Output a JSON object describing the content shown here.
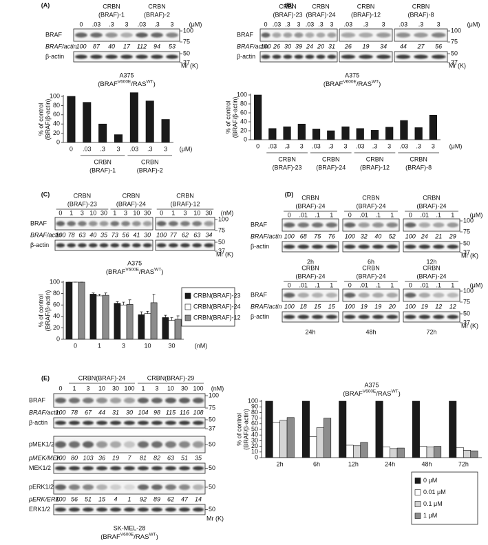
{
  "panels": {
    "A": {
      "label": "(A)",
      "unit": "(μM)",
      "control": "0",
      "groups": [
        {
          "title": [
            "CRBN",
            "(BRAF)-1"
          ],
          "lanes": [
            ".03",
            ".3",
            "3"
          ]
        },
        {
          "title": [
            "CRBN",
            "(BRAF)-2"
          ],
          "lanes": [
            ".03",
            ".3",
            "3"
          ]
        }
      ],
      "rows": [
        {
          "name": "BRAF",
          "markers": [
            100,
            75
          ],
          "ratio_name": "BRAF/actin",
          "ratios": [
            100,
            87,
            40,
            17,
            112,
            94,
            53
          ]
        },
        {
          "name": "β-actin",
          "markers": [
            50,
            37
          ]
        }
      ],
      "mr": "Mr (K)",
      "cell": "A375",
      "genotype": [
        "(BRAF",
        "V600E",
        "/RAS",
        "WT",
        ")"
      ]
    },
    "B": {
      "label": "(B)",
      "unit": "(μM)",
      "control": "0",
      "groups": [
        {
          "title": [
            "CRBN",
            "(BRAF)-23"
          ],
          "lanes": [
            ".03",
            ".3",
            "3"
          ]
        },
        {
          "title": [
            "CRBN",
            "(BRAF)-24"
          ],
          "lanes": [
            ".03",
            ".3",
            "3"
          ]
        },
        {
          "title": [
            "CRBN",
            "(BRAF)-12"
          ],
          "lanes": [
            ".03",
            ".3",
            "3"
          ]
        },
        {
          "title": [
            "CRBN",
            "(BRAF)-8"
          ],
          "lanes": [
            ".03",
            ".3",
            "3"
          ]
        }
      ],
      "rows": [
        {
          "name": "BRAF",
          "markers": [
            100,
            75
          ],
          "ratio_name": "BRAF/actin",
          "ratios": [
            100,
            26,
            30,
            39,
            24,
            20,
            31,
            26,
            19,
            34,
            44,
            27,
            56
          ]
        },
        {
          "name": "β-actin",
          "markers": [
            50,
            37
          ]
        }
      ],
      "mr": "Mr (K)",
      "cell": "A375",
      "genotype": [
        "(BRAF",
        "V600E",
        "/RAS",
        "WT",
        ")"
      ]
    },
    "C": {
      "label": "(C)",
      "unit": "(nM)",
      "groups": [
        {
          "title": [
            "CRBN",
            "(BRAF)-23"
          ],
          "lanes": [
            "0",
            "1",
            "3",
            "10",
            "30"
          ]
        },
        {
          "title": [
            "CRBN",
            "(BRAF)-24"
          ],
          "lanes": [
            "1",
            "3",
            "10",
            "30"
          ]
        },
        {
          "title": [
            "CRBN",
            "(BRAF)-12"
          ],
          "lanes": [
            "0",
            "1",
            "3",
            "10",
            "30"
          ]
        }
      ],
      "rows": [
        {
          "name": "BRAF",
          "markers": [
            100,
            75
          ],
          "ratio_name": "BRAF/actin",
          "ratios": [
            100,
            78,
            63,
            40,
            35,
            73,
            56,
            41,
            30,
            100,
            77,
            62,
            63,
            34
          ]
        },
        {
          "name": "β-actin",
          "markers": [
            50,
            37
          ]
        }
      ],
      "mr": "Mr (K)",
      "cell": "A375",
      "genotype": [
        "(BRAF",
        "V600E",
        "/RAS",
        "WT",
        ")"
      ]
    },
    "D": {
      "label": "(D)",
      "unit": "(μM)",
      "mr": "Mr (K)",
      "rows": [
        {
          "name": "BRAF",
          "markers": [
            100,
            75
          ],
          "ratio_name": "BRAF/actin"
        },
        {
          "name": "β-actin",
          "markers": [
            50,
            37
          ]
        }
      ],
      "blots": [
        {
          "title": [
            "CRBN",
            "(BRAF)-24"
          ],
          "lanes": [
            "0",
            ".01",
            ".1",
            "1"
          ],
          "ratios": [
            100,
            68,
            75,
            76
          ],
          "time": "2h"
        },
        {
          "title": [
            "CRBN",
            "(BRAF)-24"
          ],
          "lanes": [
            "0",
            ".01",
            ".1",
            "1"
          ],
          "ratios": [
            100,
            32,
            40,
            52
          ],
          "time": "6h"
        },
        {
          "title": [
            "CRBN",
            "(BRAF)-24"
          ],
          "lanes": [
            "0",
            ".01",
            ".1",
            "1"
          ],
          "ratios": [
            100,
            24,
            21,
            29
          ],
          "time": "12h"
        },
        {
          "title": [
            "CRBN",
            "(BRAF)-24"
          ],
          "lanes": [
            "0",
            ".01",
            ".1",
            "1"
          ],
          "ratios": [
            100,
            18,
            15,
            15
          ],
          "time": "24h"
        },
        {
          "title": [
            "CRBN",
            "(BRAF)-24"
          ],
          "lanes": [
            "0",
            ".01",
            ".1",
            "1"
          ],
          "ratios": [
            100,
            19,
            19,
            20
          ],
          "time": "48h"
        },
        {
          "title": [
            "CRBN",
            "(BRAF)-24"
          ],
          "lanes": [
            "0",
            ".01",
            ".1",
            "1"
          ],
          "ratios": [
            100,
            19,
            12,
            12
          ],
          "time": "72h"
        }
      ]
    },
    "E": {
      "label": "(E)",
      "unit": "(nM)",
      "control": "0",
      "groups": [
        {
          "title": [
            "CRBN(BRAF)-24"
          ],
          "lanes": [
            "1",
            "3",
            "10",
            "30",
            "100"
          ]
        },
        {
          "title": [
            "CRBN(BRAF)-29"
          ],
          "lanes": [
            "1",
            "3",
            "10",
            "30",
            "100"
          ]
        }
      ],
      "rows": [
        {
          "name": "BRAF",
          "markers": [
            100,
            75
          ],
          "ratio_name": "BRAF/actin",
          "ratios": [
            100,
            78,
            67,
            44,
            31,
            30,
            104,
            98,
            115,
            116,
            108
          ]
        },
        {
          "name": "β-actin",
          "markers": [
            50,
            37
          ]
        },
        {
          "name": "pMEK1/2",
          "markers": [
            50
          ],
          "ratio_name": "pMEK/MEK",
          "ratios": [
            100,
            80,
            103,
            36,
            19,
            7,
            81,
            82,
            63,
            51,
            35
          ]
        },
        {
          "name": "MEK1/2",
          "markers": [
            50
          ]
        },
        {
          "name": "pERK1/2",
          "markers": [
            50
          ],
          "ratio_name": "pERK/ERK",
          "ratios": [
            100,
            56,
            51,
            15,
            4,
            1,
            92,
            89,
            62,
            47,
            14
          ]
        },
        {
          "name": "ERK1/2",
          "markers": [
            50
          ]
        }
      ],
      "mr": "Mr (K)",
      "cell": "SK-MEL-28",
      "genotype": [
        "(BRAF",
        "V600E",
        "/RAS",
        "WT",
        ")"
      ]
    }
  },
  "chart_data": [
    {
      "type": "bar",
      "categories": [
        "0",
        ".03",
        ".3",
        "3",
        ".03",
        ".3",
        "3"
      ],
      "values": [
        100,
        87,
        40,
        17,
        108,
        90,
        50
      ],
      "color": "#1a1a1a",
      "ylim": [
        0,
        100
      ],
      "yticks": [
        0,
        20,
        40,
        60,
        80,
        100
      ],
      "y_label": [
        "% of control",
        "(BRAF/β-actin)"
      ],
      "x_unit": "(μM)",
      "x_groups": [
        [
          "CRBN",
          "(BRAF)-1"
        ],
        [
          "CRBN",
          "(BRAF)-2"
        ]
      ]
    },
    {
      "type": "bar",
      "categories": [
        "0",
        ".03",
        ".3",
        "3",
        ".03",
        ".3",
        "3",
        ".03",
        ".3",
        "3",
        ".03",
        ".3",
        "3"
      ],
      "values": [
        100,
        25,
        29,
        35,
        24,
        20,
        29,
        25,
        21,
        28,
        43,
        27,
        55
      ],
      "color": "#1a1a1a",
      "ylim": [
        0,
        100
      ],
      "yticks": [
        0,
        20,
        40,
        60,
        80,
        100
      ],
      "y_label": [
        "% of control",
        "(BRAF/β-actin)"
      ],
      "x_unit": "(μM)",
      "x_groups": [
        [
          "CRBN",
          "(BRAF)-23"
        ],
        [
          "CRBN",
          "(BRAF)-24"
        ],
        [
          "CRBN",
          "(BRAF)-12"
        ],
        [
          "CRBN",
          "(BRAF)-8"
        ]
      ]
    },
    {
      "type": "bar",
      "categories": [
        "0",
        "1",
        "3",
        "10",
        "30"
      ],
      "series": [
        {
          "name": "CRBN(BRAF)-23",
          "color": "#1a1a1a",
          "values": [
            100,
            79,
            63,
            43,
            38
          ],
          "errors": [
            0,
            2,
            3,
            5,
            4
          ]
        },
        {
          "name": "CRBN(BRAF)-24",
          "color": "#ffffff",
          "values": [
            100,
            76,
            60,
            45,
            33
          ],
          "errors": [
            0,
            3,
            5,
            4,
            5
          ]
        },
        {
          "name": "CRBN(BRAF)-12",
          "color": "#8c8c8c",
          "values": [
            100,
            77,
            61,
            64,
            35
          ],
          "errors": [
            0,
            4,
            8,
            15,
            6
          ]
        }
      ],
      "ylim": [
        0,
        100
      ],
      "yticks": [
        0,
        20,
        40,
        60,
        80,
        100
      ],
      "y_label": [
        "% of control",
        "(BRAF/β-actin)"
      ],
      "x_unit": "(nM)",
      "legend": "right"
    },
    {
      "type": "bar",
      "title": "A375",
      "subtitle": [
        "(BRAF",
        "V600E",
        "/RAS",
        "WT",
        ")"
      ],
      "categories": [
        "2h",
        "6h",
        "12h",
        "24h",
        "48h",
        "72h"
      ],
      "series": [
        {
          "name": "0 μM",
          "color": "#1a1a1a",
          "values": [
            100,
            100,
            100,
            100,
            100,
            100
          ]
        },
        {
          "name": "0.01 μM",
          "color": "#ffffff",
          "values": [
            63,
            37,
            22,
            19,
            20,
            18
          ]
        },
        {
          "name": "0.1 μM",
          "color": "#d4d4d4",
          "values": [
            66,
            53,
            21,
            16,
            19,
            13
          ]
        },
        {
          "name": "1 μM",
          "color": "#8c8c8c",
          "values": [
            71,
            70,
            27,
            17,
            20,
            12
          ]
        }
      ],
      "ylim": [
        0,
        100
      ],
      "yticks": [
        0,
        10,
        20,
        30,
        40,
        50,
        60,
        70,
        80,
        90,
        100
      ],
      "y_label": [
        "% of control",
        "(BRAF/β-actin)"
      ],
      "legend": "lower right"
    }
  ]
}
